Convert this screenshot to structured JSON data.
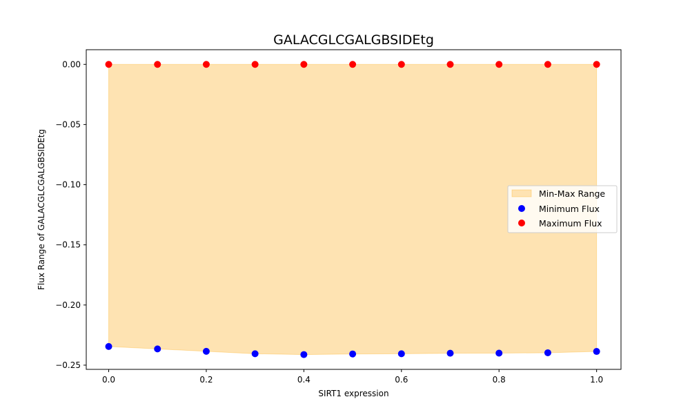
{
  "chart_data": {
    "type": "scatter",
    "title": "GALACGLCGALGBSIDEtg",
    "xlabel": "SIRT1 expression",
    "ylabel": "Flux Range of GALACGLCGALGBSIDEtg",
    "x": [
      0.0,
      0.1,
      0.2,
      0.3,
      0.4,
      0.5,
      0.6,
      0.7,
      0.8,
      0.9,
      1.0
    ],
    "x_ticks": [
      "0.0",
      "0.2",
      "0.4",
      "0.6",
      "0.8",
      "1.0"
    ],
    "y_ticks": [
      "0.00",
      "−0.05",
      "−0.10",
      "−0.15",
      "−0.20",
      "−0.25"
    ],
    "xlim": [
      -0.046,
      1.05
    ],
    "ylim": [
      -0.2535,
      0.0122
    ],
    "grid": false,
    "legend_position": "center-right",
    "series": [
      {
        "name": "Min-Max Range",
        "kind": "fill_between",
        "color": "#ffa500",
        "fill_color": "#fee3b2",
        "lower": [
          -0.2345,
          -0.2365,
          -0.2385,
          -0.2405,
          -0.2412,
          -0.2407,
          -0.2405,
          -0.2401,
          -0.24,
          -0.2397,
          -0.2386
        ],
        "upper": [
          0.0,
          0.0,
          0.0,
          0.0,
          0.0,
          0.0,
          0.0,
          0.0,
          0.0,
          0.0,
          0.0
        ]
      },
      {
        "name": "Minimum Flux",
        "kind": "scatter",
        "color": "#0000ff",
        "values": [
          -0.2345,
          -0.2365,
          -0.2385,
          -0.2405,
          -0.2412,
          -0.2407,
          -0.2405,
          -0.2401,
          -0.24,
          -0.2397,
          -0.2386
        ]
      },
      {
        "name": "Maximum Flux",
        "kind": "scatter",
        "color": "#ff0000",
        "values": [
          0.0,
          0.0,
          0.0,
          0.0,
          0.0,
          0.0,
          0.0,
          0.0,
          0.0,
          0.0,
          0.0
        ]
      }
    ]
  }
}
